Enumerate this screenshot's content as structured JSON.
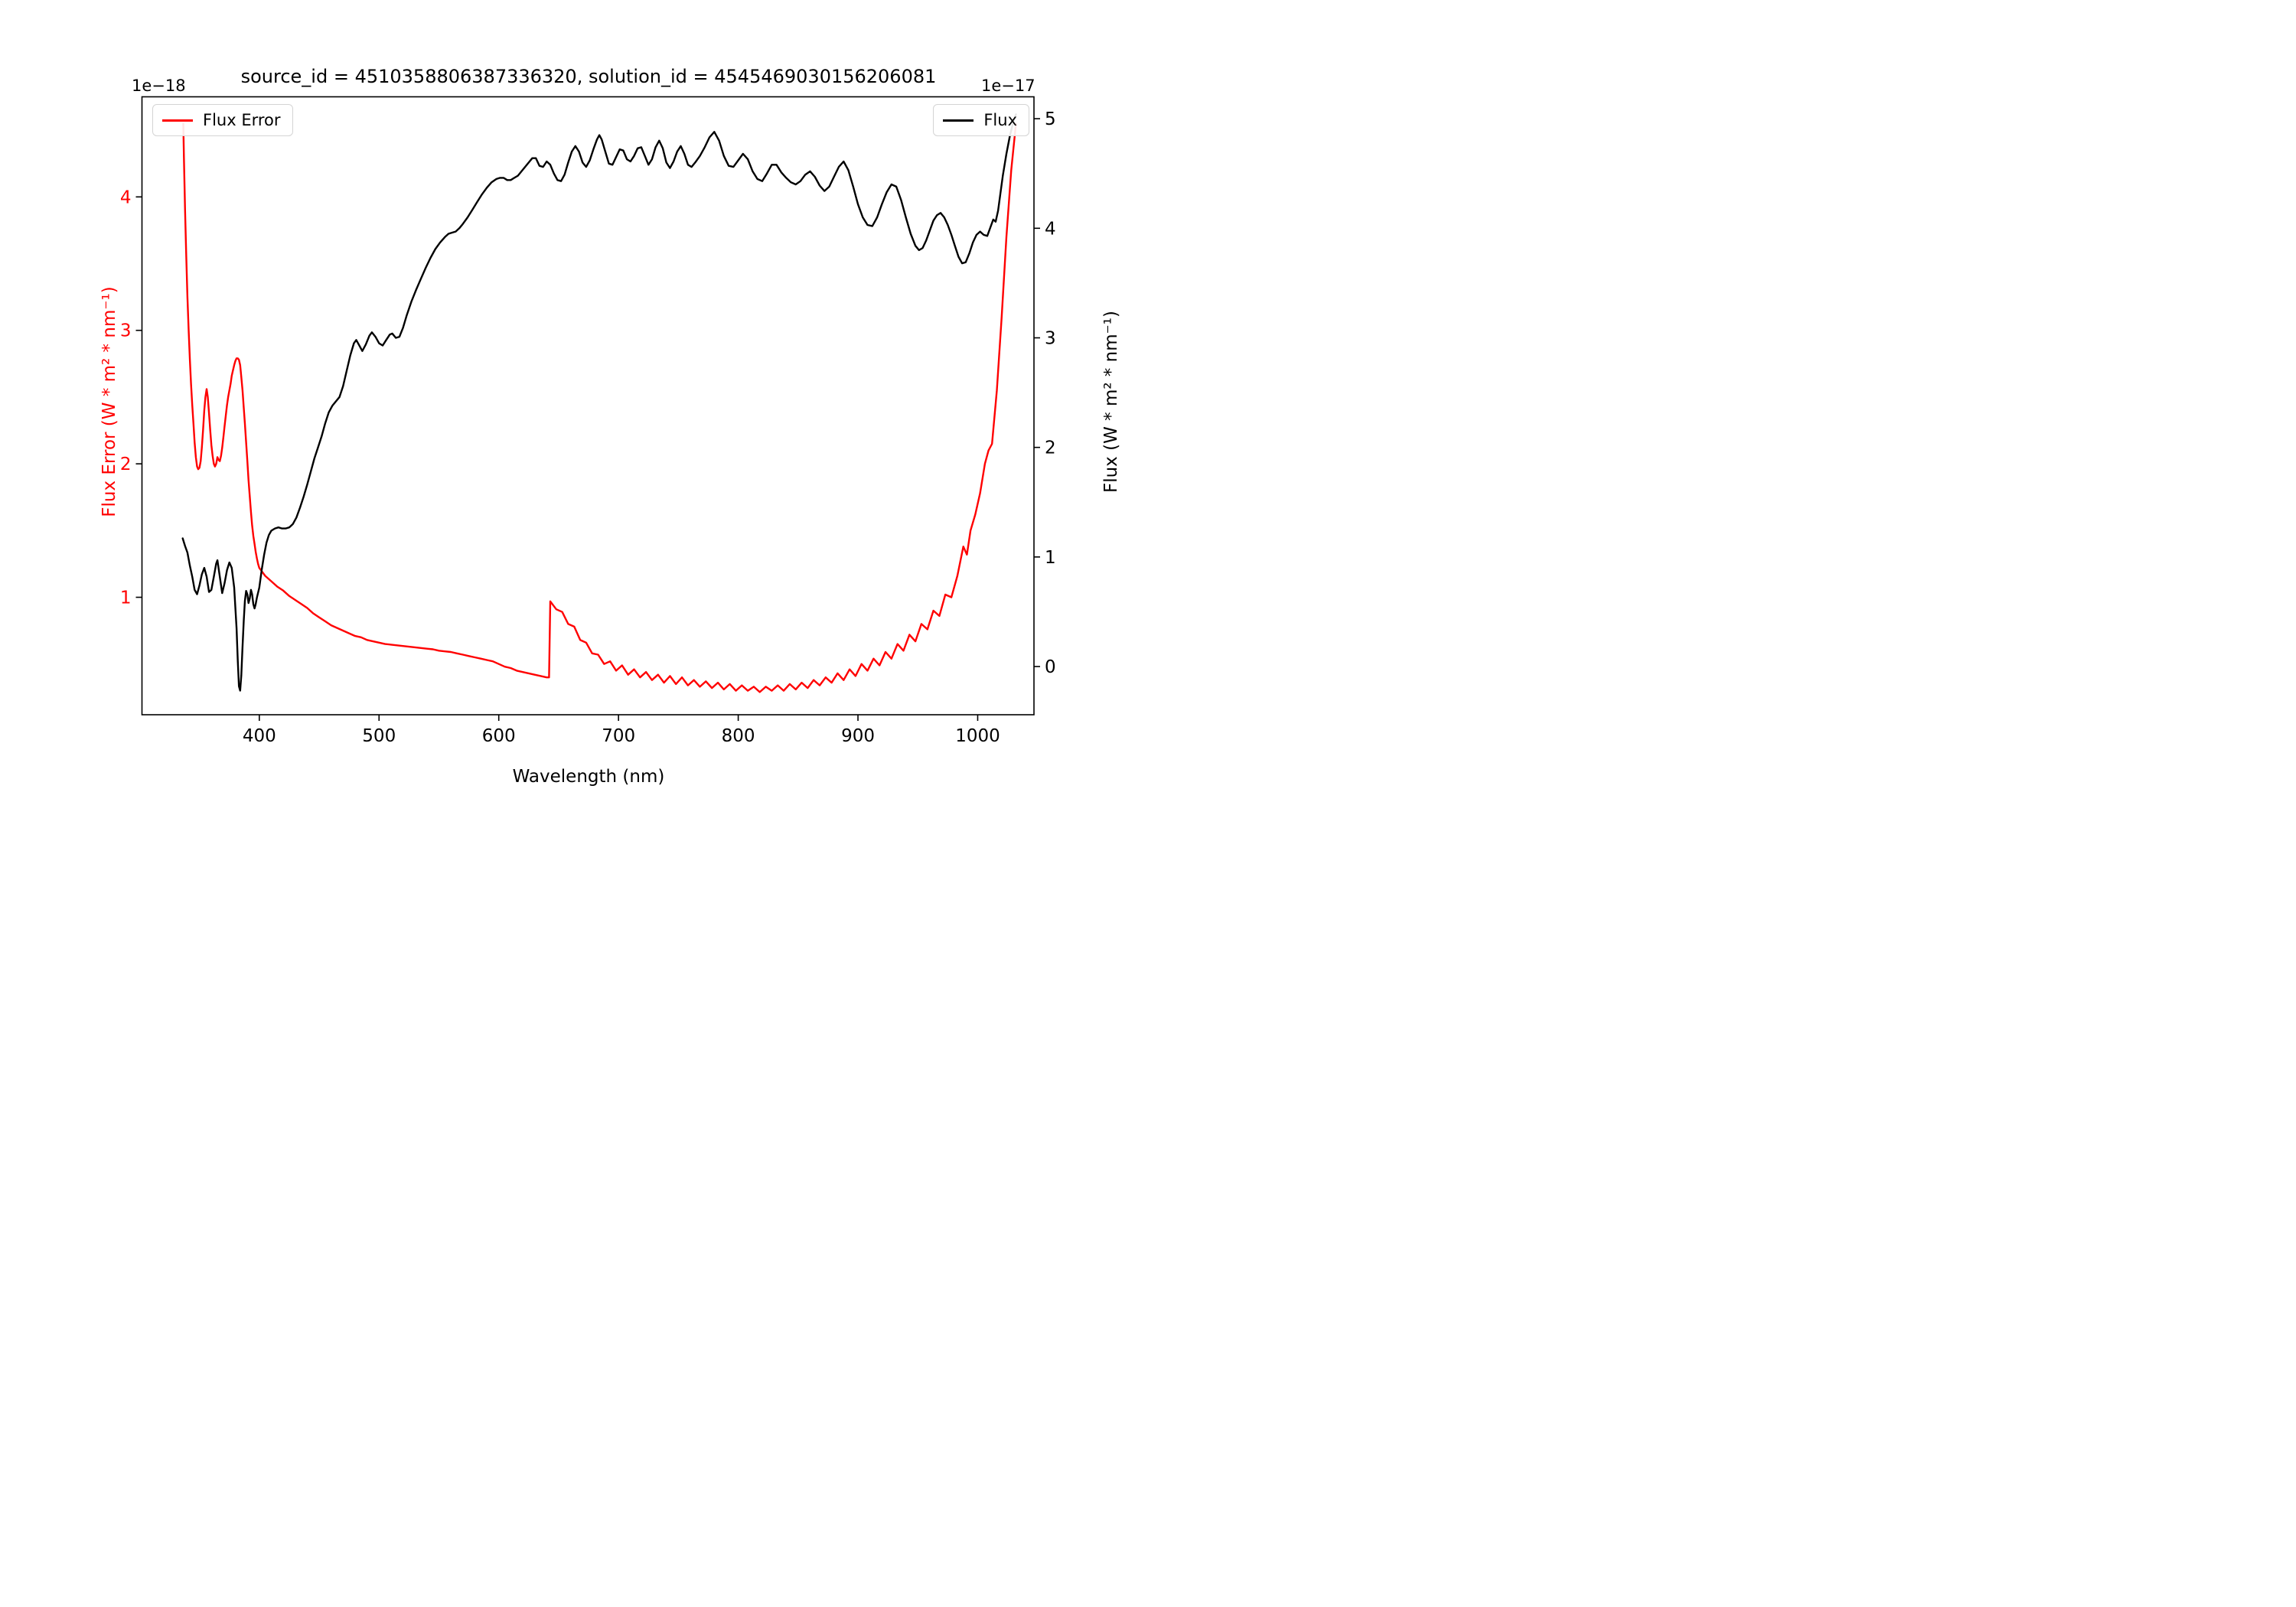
{
  "title": "source_id = 4510358806387336320, solution_id = 4545469030156206081",
  "legends": {
    "flux_error": "Flux Error",
    "flux": "Flux"
  },
  "axes": {
    "x": {
      "label": "Wavelength (nm)",
      "ticks": [
        400,
        500,
        600,
        700,
        800,
        900,
        1000
      ],
      "range": [
        302,
        1047
      ]
    },
    "y_left": {
      "label": "Flux Error (W * m² * nm⁻¹)",
      "offset_text": "1e−18",
      "ticks": [
        1,
        2,
        3,
        4
      ],
      "range": [
        0.12,
        4.75
      ],
      "color": "#ff0000"
    },
    "y_right": {
      "label": "Flux (W * m² * nm⁻¹)",
      "offset_text": "1e−17",
      "ticks": [
        0,
        1,
        2,
        3,
        4,
        5
      ],
      "range": [
        -0.44,
        5.2
      ],
      "color": "#000000"
    }
  },
  "chart_data": {
    "type": "line",
    "title": "source_id = 4510358806387336320, solution_id = 4545469030156206081",
    "xlabel": "Wavelength (nm)",
    "ylabel_left": "Flux Error (W * m² * nm⁻¹)",
    "ylabel_right": "Flux (W * m² * nm⁻¹)",
    "grid": false,
    "xlim": [
      302,
      1047
    ],
    "ylim_left_1e-18": [
      0.12,
      4.75
    ],
    "ylim_right_1e-17": [
      -0.44,
      5.2
    ],
    "legend_positions": [
      "upper left",
      "upper right"
    ],
    "series": [
      {
        "name": "Flux Error",
        "axis": "left",
        "units_scale": "1e-18 W * m² * nm⁻¹",
        "color": "#ff0000",
        "x": [
          336.5,
          337,
          338,
          339,
          340,
          341,
          342,
          343,
          344,
          345,
          346,
          347,
          348,
          349,
          350,
          351,
          352,
          353,
          354,
          355,
          356,
          357,
          358,
          359,
          360,
          361,
          362,
          363,
          364,
          365,
          366,
          367,
          368,
          369,
          370,
          371,
          372,
          373,
          374,
          375,
          376,
          377,
          378,
          379,
          380,
          381,
          382,
          383,
          384,
          385,
          386,
          387,
          388,
          389,
          390,
          391,
          392,
          393,
          394,
          395,
          396,
          397,
          398,
          399,
          400,
          405,
          410,
          415,
          420,
          425,
          430,
          435,
          440,
          445,
          450,
          455,
          460,
          465,
          470,
          475,
          480,
          485,
          490,
          495,
          500,
          505,
          510,
          515,
          520,
          525,
          530,
          535,
          540,
          545,
          550,
          555,
          560,
          565,
          570,
          575,
          580,
          585,
          590,
          595,
          600,
          605,
          610,
          615,
          620,
          625,
          630,
          635,
          640,
          642,
          643,
          648,
          653,
          658,
          663,
          668,
          673,
          678,
          683,
          688,
          693,
          698,
          703,
          708,
          713,
          718,
          723,
          728,
          733,
          738,
          743,
          748,
          753,
          758,
          763,
          768,
          773,
          778,
          783,
          788,
          793,
          798,
          803,
          808,
          813,
          818,
          823,
          828,
          833,
          838,
          843,
          848,
          853,
          858,
          863,
          868,
          873,
          878,
          883,
          888,
          893,
          898,
          903,
          908,
          913,
          918,
          923,
          928,
          933,
          938,
          943,
          948,
          953,
          958,
          963,
          968,
          973,
          978,
          983,
          988,
          991,
          994,
          998,
          1002,
          1006,
          1009,
          1012,
          1016,
          1020,
          1024,
          1028,
          1032
        ],
        "y": [
          4.55,
          4.3,
          3.9,
          3.55,
          3.25,
          3.0,
          2.78,
          2.6,
          2.44,
          2.3,
          2.16,
          2.05,
          1.98,
          1.96,
          1.97,
          2.02,
          2.12,
          2.25,
          2.4,
          2.5,
          2.56,
          2.5,
          2.38,
          2.25,
          2.14,
          2.06,
          2.0,
          1.98,
          2.0,
          2.05,
          2.03,
          2.02,
          2.06,
          2.12,
          2.2,
          2.28,
          2.36,
          2.44,
          2.5,
          2.55,
          2.6,
          2.66,
          2.7,
          2.74,
          2.77,
          2.79,
          2.79,
          2.78,
          2.74,
          2.65,
          2.55,
          2.42,
          2.3,
          2.16,
          2.02,
          1.88,
          1.76,
          1.64,
          1.54,
          1.46,
          1.4,
          1.34,
          1.29,
          1.25,
          1.22,
          1.16,
          1.12,
          1.08,
          1.05,
          1.01,
          0.98,
          0.95,
          0.92,
          0.88,
          0.85,
          0.82,
          0.79,
          0.77,
          0.75,
          0.73,
          0.71,
          0.7,
          0.68,
          0.67,
          0.66,
          0.65,
          0.645,
          0.64,
          0.635,
          0.63,
          0.625,
          0.62,
          0.615,
          0.61,
          0.6,
          0.595,
          0.59,
          0.58,
          0.57,
          0.56,
          0.55,
          0.54,
          0.53,
          0.52,
          0.5,
          0.48,
          0.47,
          0.45,
          0.44,
          0.43,
          0.42,
          0.41,
          0.4,
          0.4,
          0.97,
          0.91,
          0.89,
          0.8,
          0.78,
          0.68,
          0.66,
          0.58,
          0.57,
          0.5,
          0.52,
          0.45,
          0.49,
          0.42,
          0.46,
          0.4,
          0.44,
          0.38,
          0.42,
          0.36,
          0.41,
          0.35,
          0.4,
          0.34,
          0.38,
          0.33,
          0.37,
          0.32,
          0.36,
          0.31,
          0.35,
          0.3,
          0.34,
          0.3,
          0.33,
          0.29,
          0.33,
          0.3,
          0.34,
          0.3,
          0.35,
          0.31,
          0.36,
          0.32,
          0.38,
          0.34,
          0.4,
          0.36,
          0.43,
          0.38,
          0.46,
          0.41,
          0.5,
          0.45,
          0.54,
          0.49,
          0.59,
          0.54,
          0.65,
          0.6,
          0.72,
          0.67,
          0.8,
          0.76,
          0.9,
          0.86,
          1.02,
          1.0,
          1.16,
          1.38,
          1.32,
          1.5,
          1.62,
          1.78,
          2.0,
          2.1,
          2.15,
          2.55,
          3.1,
          3.7,
          4.2,
          4.55
        ]
      },
      {
        "name": "Flux",
        "axis": "right",
        "units_scale": "1e-17 W * m² * nm⁻¹",
        "color": "#000000",
        "x": [
          336,
          338,
          340,
          342,
          344,
          346,
          348,
          350,
          352,
          354,
          356,
          358,
          360,
          362,
          364,
          365,
          367,
          369,
          371,
          373,
          375,
          377,
          379,
          381,
          382,
          383,
          384,
          385,
          386,
          387,
          388,
          389,
          390,
          391,
          392,
          393,
          394,
          395,
          396,
          397,
          398,
          400,
          402,
          404,
          406,
          408,
          410,
          413,
          416,
          419,
          422,
          425,
          428,
          431,
          434,
          437,
          440,
          443,
          446,
          449,
          452,
          455,
          458,
          461,
          464,
          467,
          470,
          473,
          476,
          479,
          481,
          483,
          486,
          489,
          492,
          494,
          497,
          500,
          503,
          506,
          509,
          511,
          514,
          517,
          520,
          523,
          527,
          531,
          535,
          539,
          543,
          547,
          551,
          555,
          558,
          561,
          564,
          567,
          570,
          574,
          578,
          582,
          586,
          590,
          594,
          598,
          601,
          604,
          607,
          610,
          613,
          616,
          619,
          622,
          625,
          628,
          631,
          634,
          637,
          640,
          643,
          646,
          649,
          652,
          655,
          658,
          661,
          664,
          667,
          670,
          673,
          676,
          679,
          682,
          684,
          686,
          689,
          692,
          695,
          698,
          701,
          704,
          707,
          710,
          713,
          716,
          719,
          722,
          725,
          728,
          731,
          734,
          737,
          740,
          743,
          746,
          749,
          752,
          755,
          758,
          761,
          764,
          768,
          772,
          776,
          780,
          784,
          788,
          792,
          796,
          800,
          804,
          808,
          812,
          816,
          820,
          824,
          828,
          832,
          836,
          840,
          844,
          848,
          852,
          856,
          860,
          864,
          868,
          872,
          876,
          880,
          884,
          888,
          892,
          896,
          900,
          904,
          908,
          912,
          916,
          920,
          924,
          928,
          932,
          936,
          940,
          944,
          948,
          951,
          954,
          957,
          960,
          963,
          966,
          969,
          972,
          975,
          978,
          981,
          984,
          987,
          990,
          993,
          996,
          999,
          1002,
          1005,
          1008,
          1011,
          1013,
          1015,
          1017,
          1019,
          1021,
          1024,
          1027,
          1030,
          1032
        ],
        "y": [
          1.17,
          1.1,
          1.04,
          0.92,
          0.82,
          0.7,
          0.66,
          0.74,
          0.84,
          0.9,
          0.82,
          0.68,
          0.7,
          0.82,
          0.94,
          0.97,
          0.82,
          0.67,
          0.76,
          0.88,
          0.95,
          0.9,
          0.72,
          0.35,
          0.05,
          -0.18,
          -0.22,
          -0.08,
          0.18,
          0.42,
          0.6,
          0.69,
          0.66,
          0.58,
          0.62,
          0.7,
          0.66,
          0.57,
          0.53,
          0.57,
          0.63,
          0.72,
          0.88,
          1.02,
          1.13,
          1.2,
          1.24,
          1.26,
          1.27,
          1.26,
          1.26,
          1.27,
          1.3,
          1.36,
          1.45,
          1.55,
          1.66,
          1.78,
          1.9,
          2.0,
          2.1,
          2.22,
          2.32,
          2.38,
          2.42,
          2.46,
          2.56,
          2.7,
          2.84,
          2.95,
          2.98,
          2.94,
          2.88,
          2.94,
          3.02,
          3.05,
          3.01,
          2.95,
          2.93,
          2.98,
          3.03,
          3.04,
          3.0,
          3.01,
          3.09,
          3.2,
          3.33,
          3.44,
          3.54,
          3.64,
          3.73,
          3.81,
          3.87,
          3.92,
          3.95,
          3.96,
          3.97,
          4.0,
          4.04,
          4.1,
          4.17,
          4.24,
          4.31,
          4.37,
          4.42,
          4.45,
          4.46,
          4.46,
          4.44,
          4.44,
          4.46,
          4.48,
          4.52,
          4.56,
          4.6,
          4.64,
          4.64,
          4.57,
          4.56,
          4.61,
          4.58,
          4.5,
          4.44,
          4.43,
          4.49,
          4.6,
          4.7,
          4.75,
          4.7,
          4.6,
          4.56,
          4.62,
          4.72,
          4.81,
          4.85,
          4.81,
          4.7,
          4.59,
          4.58,
          4.65,
          4.72,
          4.71,
          4.63,
          4.61,
          4.66,
          4.73,
          4.74,
          4.66,
          4.58,
          4.63,
          4.74,
          4.8,
          4.73,
          4.6,
          4.55,
          4.61,
          4.7,
          4.75,
          4.68,
          4.58,
          4.56,
          4.6,
          4.66,
          4.74,
          4.83,
          4.88,
          4.8,
          4.66,
          4.57,
          4.56,
          4.62,
          4.68,
          4.63,
          4.52,
          4.45,
          4.43,
          4.5,
          4.58,
          4.58,
          4.51,
          4.46,
          4.42,
          4.4,
          4.43,
          4.49,
          4.52,
          4.47,
          4.39,
          4.34,
          4.38,
          4.47,
          4.56,
          4.61,
          4.53,
          4.38,
          4.22,
          4.1,
          4.03,
          4.02,
          4.1,
          4.22,
          4.33,
          4.4,
          4.38,
          4.26,
          4.1,
          3.95,
          3.84,
          3.8,
          3.82,
          3.89,
          3.98,
          4.07,
          4.12,
          4.14,
          4.1,
          4.03,
          3.94,
          3.84,
          3.74,
          3.68,
          3.69,
          3.77,
          3.87,
          3.94,
          3.97,
          3.94,
          3.93,
          4.02,
          4.08,
          4.06,
          4.16,
          4.32,
          4.48,
          4.68,
          4.85,
          4.98,
          5.04
        ]
      }
    ]
  }
}
